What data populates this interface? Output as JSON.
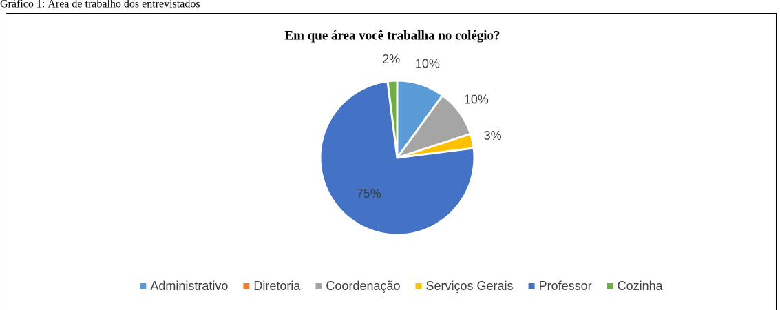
{
  "caption": "Gráfico 1: Área de trabalho dos entrevistados",
  "chart_data": {
    "type": "pie",
    "title": "Em que área você trabalha no colégio?",
    "categories": [
      "Administrativo",
      "Diretoria",
      "Coordenação",
      "Serviços Gerais",
      "Professor",
      "Cozinha"
    ],
    "values": [
      10,
      0,
      10,
      3,
      75,
      2
    ],
    "value_labels": [
      "10%",
      null,
      "10%",
      "3%",
      "75%",
      "2%"
    ],
    "colors": [
      "#5b9bd5",
      "#ed7d31",
      "#a5a5a5",
      "#ffc000",
      "#4472c4",
      "#70ad47"
    ],
    "legend": "bottom"
  }
}
